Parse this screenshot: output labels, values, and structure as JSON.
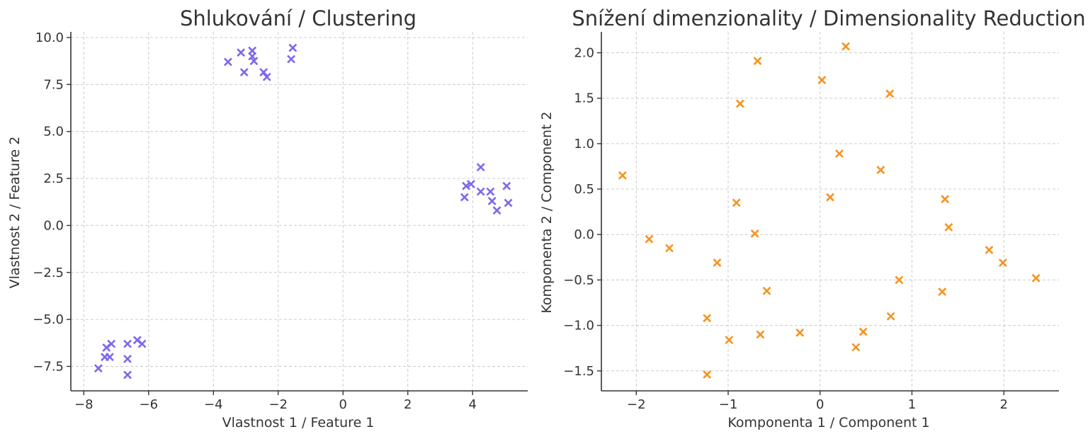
{
  "chart_data": [
    {
      "type": "scatter",
      "title": "Shlukování / Clustering",
      "xlabel": "Vlastnost 1 / Feature 1",
      "ylabel": "Vlastnost 2 / Feature 2",
      "xlim": [
        -8.4,
        5.7
      ],
      "ylim": [
        -8.8,
        10.3
      ],
      "xticks": [
        -8,
        -6,
        -4,
        -2,
        0,
        2,
        4
      ],
      "xtick_labels": [
        "−8",
        "−6",
        "−4",
        "−2",
        "0",
        "2",
        "4"
      ],
      "yticks": [
        -7.5,
        -5.0,
        -2.5,
        0.0,
        2.5,
        5.0,
        7.5,
        10.0
      ],
      "ytick_labels": [
        "−7.5",
        "−5.0",
        "−2.5",
        "0.0",
        "2.5",
        "5.0",
        "7.5",
        "10.0"
      ],
      "grid": true,
      "marker": "x",
      "color": "#7b68ee",
      "series": [
        {
          "name": "points",
          "x": [
            -3.55,
            -3.15,
            -3.05,
            -2.8,
            -2.8,
            -2.75,
            -2.45,
            -2.35,
            -1.6,
            -1.55,
            4.25,
            3.8,
            3.95,
            3.75,
            4.25,
            4.55,
            4.6,
            4.75,
            5.05,
            5.1,
            -7.55,
            -7.35,
            -7.3,
            -7.2,
            -7.15,
            -6.65,
            -6.65,
            -6.65,
            -6.35,
            -6.2
          ],
          "y": [
            8.7,
            9.2,
            8.15,
            9.3,
            9.0,
            8.75,
            8.15,
            7.9,
            8.85,
            9.45,
            3.1,
            2.1,
            2.2,
            1.5,
            1.8,
            1.8,
            1.3,
            0.8,
            2.1,
            1.2,
            -7.6,
            -7.0,
            -6.5,
            -7.0,
            -6.3,
            -6.3,
            -7.1,
            -7.95,
            -6.1,
            -6.3
          ]
        }
      ]
    },
    {
      "type": "scatter",
      "title": "Snížení dimenzionality / Dimensionality Reduction",
      "xlabel": "Komponenta 1 / Component 1",
      "ylabel": "Komponenta 2 / Component 2",
      "xlim": [
        -2.38,
        2.6
      ],
      "ylim": [
        -1.72,
        2.23
      ],
      "xticks": [
        -2,
        -1,
        0,
        1,
        2
      ],
      "xtick_labels": [
        "−2",
        "−1",
        "0",
        "1",
        "2"
      ],
      "yticks": [
        -1.5,
        -1.0,
        -0.5,
        0.0,
        0.5,
        1.0,
        1.5,
        2.0
      ],
      "ytick_labels": [
        "−1.5",
        "−1.0",
        "−0.5",
        "0.0",
        "0.5",
        "1.0",
        "1.5",
        "2.0"
      ],
      "grid": true,
      "marker": "x",
      "color": "#f7931e",
      "series": [
        {
          "name": "points",
          "x": [
            0.28,
            -0.68,
            0.02,
            0.76,
            -0.87,
            0.21,
            0.66,
            -2.15,
            0.11,
            -0.91,
            1.36,
            1.4,
            -0.71,
            -1.86,
            -1.64,
            -1.12,
            1.84,
            1.99,
            -0.58,
            0.86,
            2.35,
            1.33,
            -1.23,
            0.77,
            0.47,
            -0.65,
            -0.22,
            -0.99,
            0.39,
            -1.23
          ],
          "y": [
            2.07,
            1.91,
            1.7,
            1.55,
            1.44,
            0.89,
            0.71,
            0.65,
            0.41,
            0.35,
            0.39,
            0.08,
            0.01,
            -0.05,
            -0.15,
            -0.31,
            -0.17,
            -0.31,
            -0.62,
            -0.5,
            -0.48,
            -0.63,
            -0.92,
            -0.9,
            -1.07,
            -1.1,
            -1.08,
            -1.16,
            -1.24,
            -1.54
          ]
        }
      ]
    }
  ]
}
